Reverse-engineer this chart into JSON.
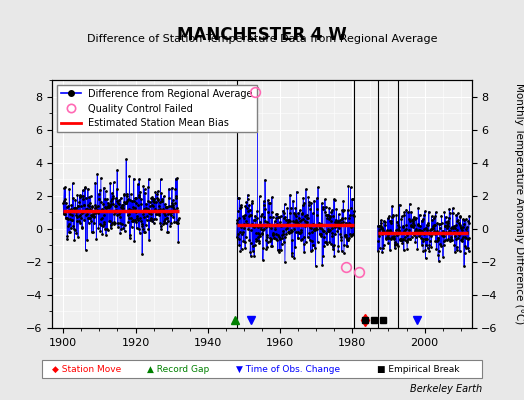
{
  "title": "MANCHESTER 4 W",
  "subtitle": "Difference of Station Temperature Data from Regional Average",
  "ylabel": "Monthly Temperature Anomaly Difference (°C)",
  "xlabel_bottom": "Berkeley Earth",
  "ylim": [
    -6,
    9
  ],
  "xlim": [
    1897,
    2013
  ],
  "yticks": [
    -6,
    -4,
    -2,
    0,
    2,
    4,
    6,
    8
  ],
  "xticks": [
    1900,
    1920,
    1940,
    1960,
    1980,
    2000
  ],
  "bg_color": "#e8e8e8",
  "plot_bg_color": "#f0f0f0",
  "segments": [
    {
      "start": 1900.0,
      "end": 1932.0,
      "bias": 1.1
    },
    {
      "start": 1948.0,
      "end": 1980.5,
      "bias": 0.2
    },
    {
      "start": 1987.0,
      "end": 2012.0,
      "bias": -0.25
    }
  ],
  "vertical_lines": [
    1948.0,
    1980.5,
    1987.0,
    1992.5
  ],
  "station_moves": [
    1983.5
  ],
  "record_gaps": [
    1947.5
  ],
  "time_obs_changes": [
    1952.0,
    1998.0
  ],
  "empirical_breaks": [
    1983.5,
    1986.0,
    1988.5
  ],
  "qc_failed": [
    1953.0,
    1978.3,
    1981.8
  ],
  "qc_failed_vals": [
    8.3,
    -2.3,
    -2.6
  ],
  "seed": 42
}
